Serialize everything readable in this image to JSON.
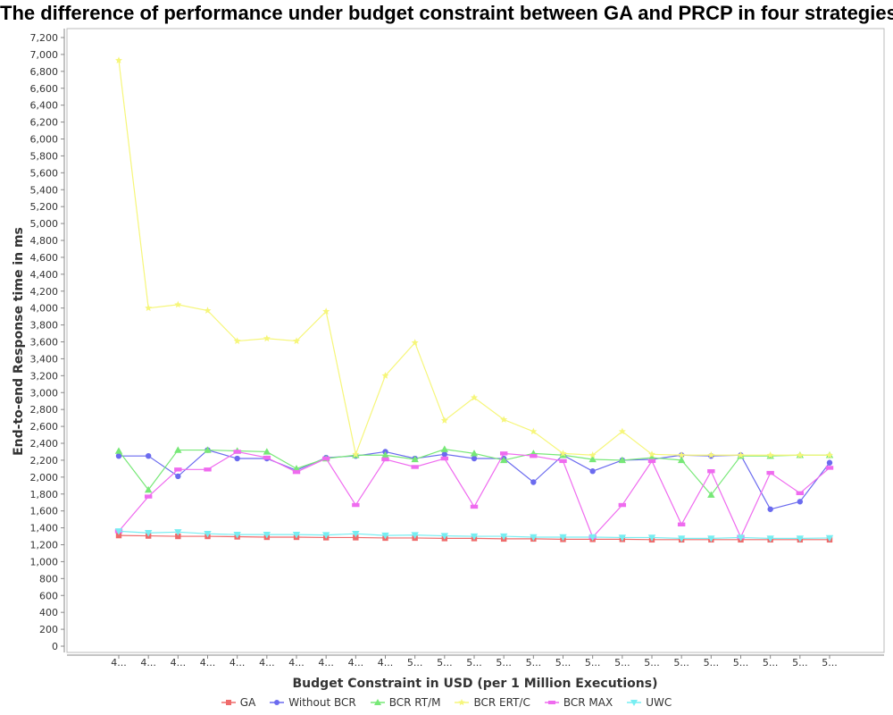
{
  "chart_data": {
    "type": "line",
    "title": "The difference of performance under budget constraint between GA and PRCP in  four strategies",
    "xlabel": "Budget Constraint in USD (per 1 Million Executions)",
    "ylabel": "End-to-end Response time in ms",
    "ylim": [
      0,
      7200
    ],
    "y_tick_step": 200,
    "grid": false,
    "legend_position": "bottom",
    "categories": [
      "4...",
      "4...",
      "4...",
      "4...",
      "4...",
      "4...",
      "4...",
      "4...",
      "4...",
      "4...",
      "5...",
      "5...",
      "5...",
      "5...",
      "5...",
      "5...",
      "5...",
      "5...",
      "5...",
      "5...",
      "5...",
      "5...",
      "5...",
      "5...",
      "5..."
    ],
    "series": [
      {
        "name": "GA",
        "color": "#ef6b6b",
        "marker": "square",
        "values": [
          1310,
          1305,
          1300,
          1300,
          1295,
          1290,
          1290,
          1285,
          1285,
          1280,
          1280,
          1275,
          1275,
          1270,
          1270,
          1265,
          1265,
          1265,
          1260,
          1260,
          1260,
          1260,
          1260,
          1260,
          1260
        ]
      },
      {
        "name": "Without BCR",
        "color": "#6b6bef",
        "marker": "circle",
        "values": [
          2250,
          2250,
          2010,
          2320,
          2220,
          2220,
          2080,
          2230,
          2250,
          2300,
          2220,
          2270,
          2220,
          2220,
          1940,
          2260,
          2070,
          2200,
          2210,
          2260,
          2250,
          2260,
          1620,
          1710,
          2170
        ]
      },
      {
        "name": "BCR RT/M",
        "color": "#77e877",
        "marker": "triangle-up",
        "values": [
          2310,
          1850,
          2320,
          2320,
          2310,
          2300,
          2100,
          2220,
          2260,
          2260,
          2210,
          2330,
          2280,
          2200,
          2280,
          2260,
          2210,
          2200,
          2230,
          2200,
          1790,
          2250,
          2250,
          2260,
          2260
        ]
      },
      {
        "name": "BCR ERT/C",
        "color": "#f6f67a",
        "marker": "star",
        "values": [
          6930,
          4000,
          4040,
          3970,
          3610,
          3640,
          3610,
          3960,
          2270,
          3200,
          3590,
          2670,
          2940,
          2680,
          2540,
          2280,
          2260,
          2540,
          2270,
          2260,
          2260,
          2260,
          2260,
          2260,
          2260
        ]
      },
      {
        "name": "BCR MAX",
        "color": "#ef6bef",
        "marker": "rect",
        "values": [
          1360,
          1770,
          2090,
          2090,
          2300,
          2230,
          2060,
          2220,
          1670,
          2210,
          2120,
          2220,
          1650,
          2280,
          2250,
          2190,
          1290,
          1670,
          2190,
          1440,
          2070,
          1290,
          2050,
          1810,
          2110
        ]
      },
      {
        "name": "UWC",
        "color": "#77eef2",
        "marker": "triangle-down",
        "values": [
          1360,
          1340,
          1350,
          1330,
          1320,
          1320,
          1320,
          1315,
          1330,
          1310,
          1315,
          1305,
          1300,
          1300,
          1290,
          1290,
          1290,
          1285,
          1285,
          1275,
          1275,
          1285,
          1275,
          1275,
          1280
        ]
      }
    ]
  }
}
